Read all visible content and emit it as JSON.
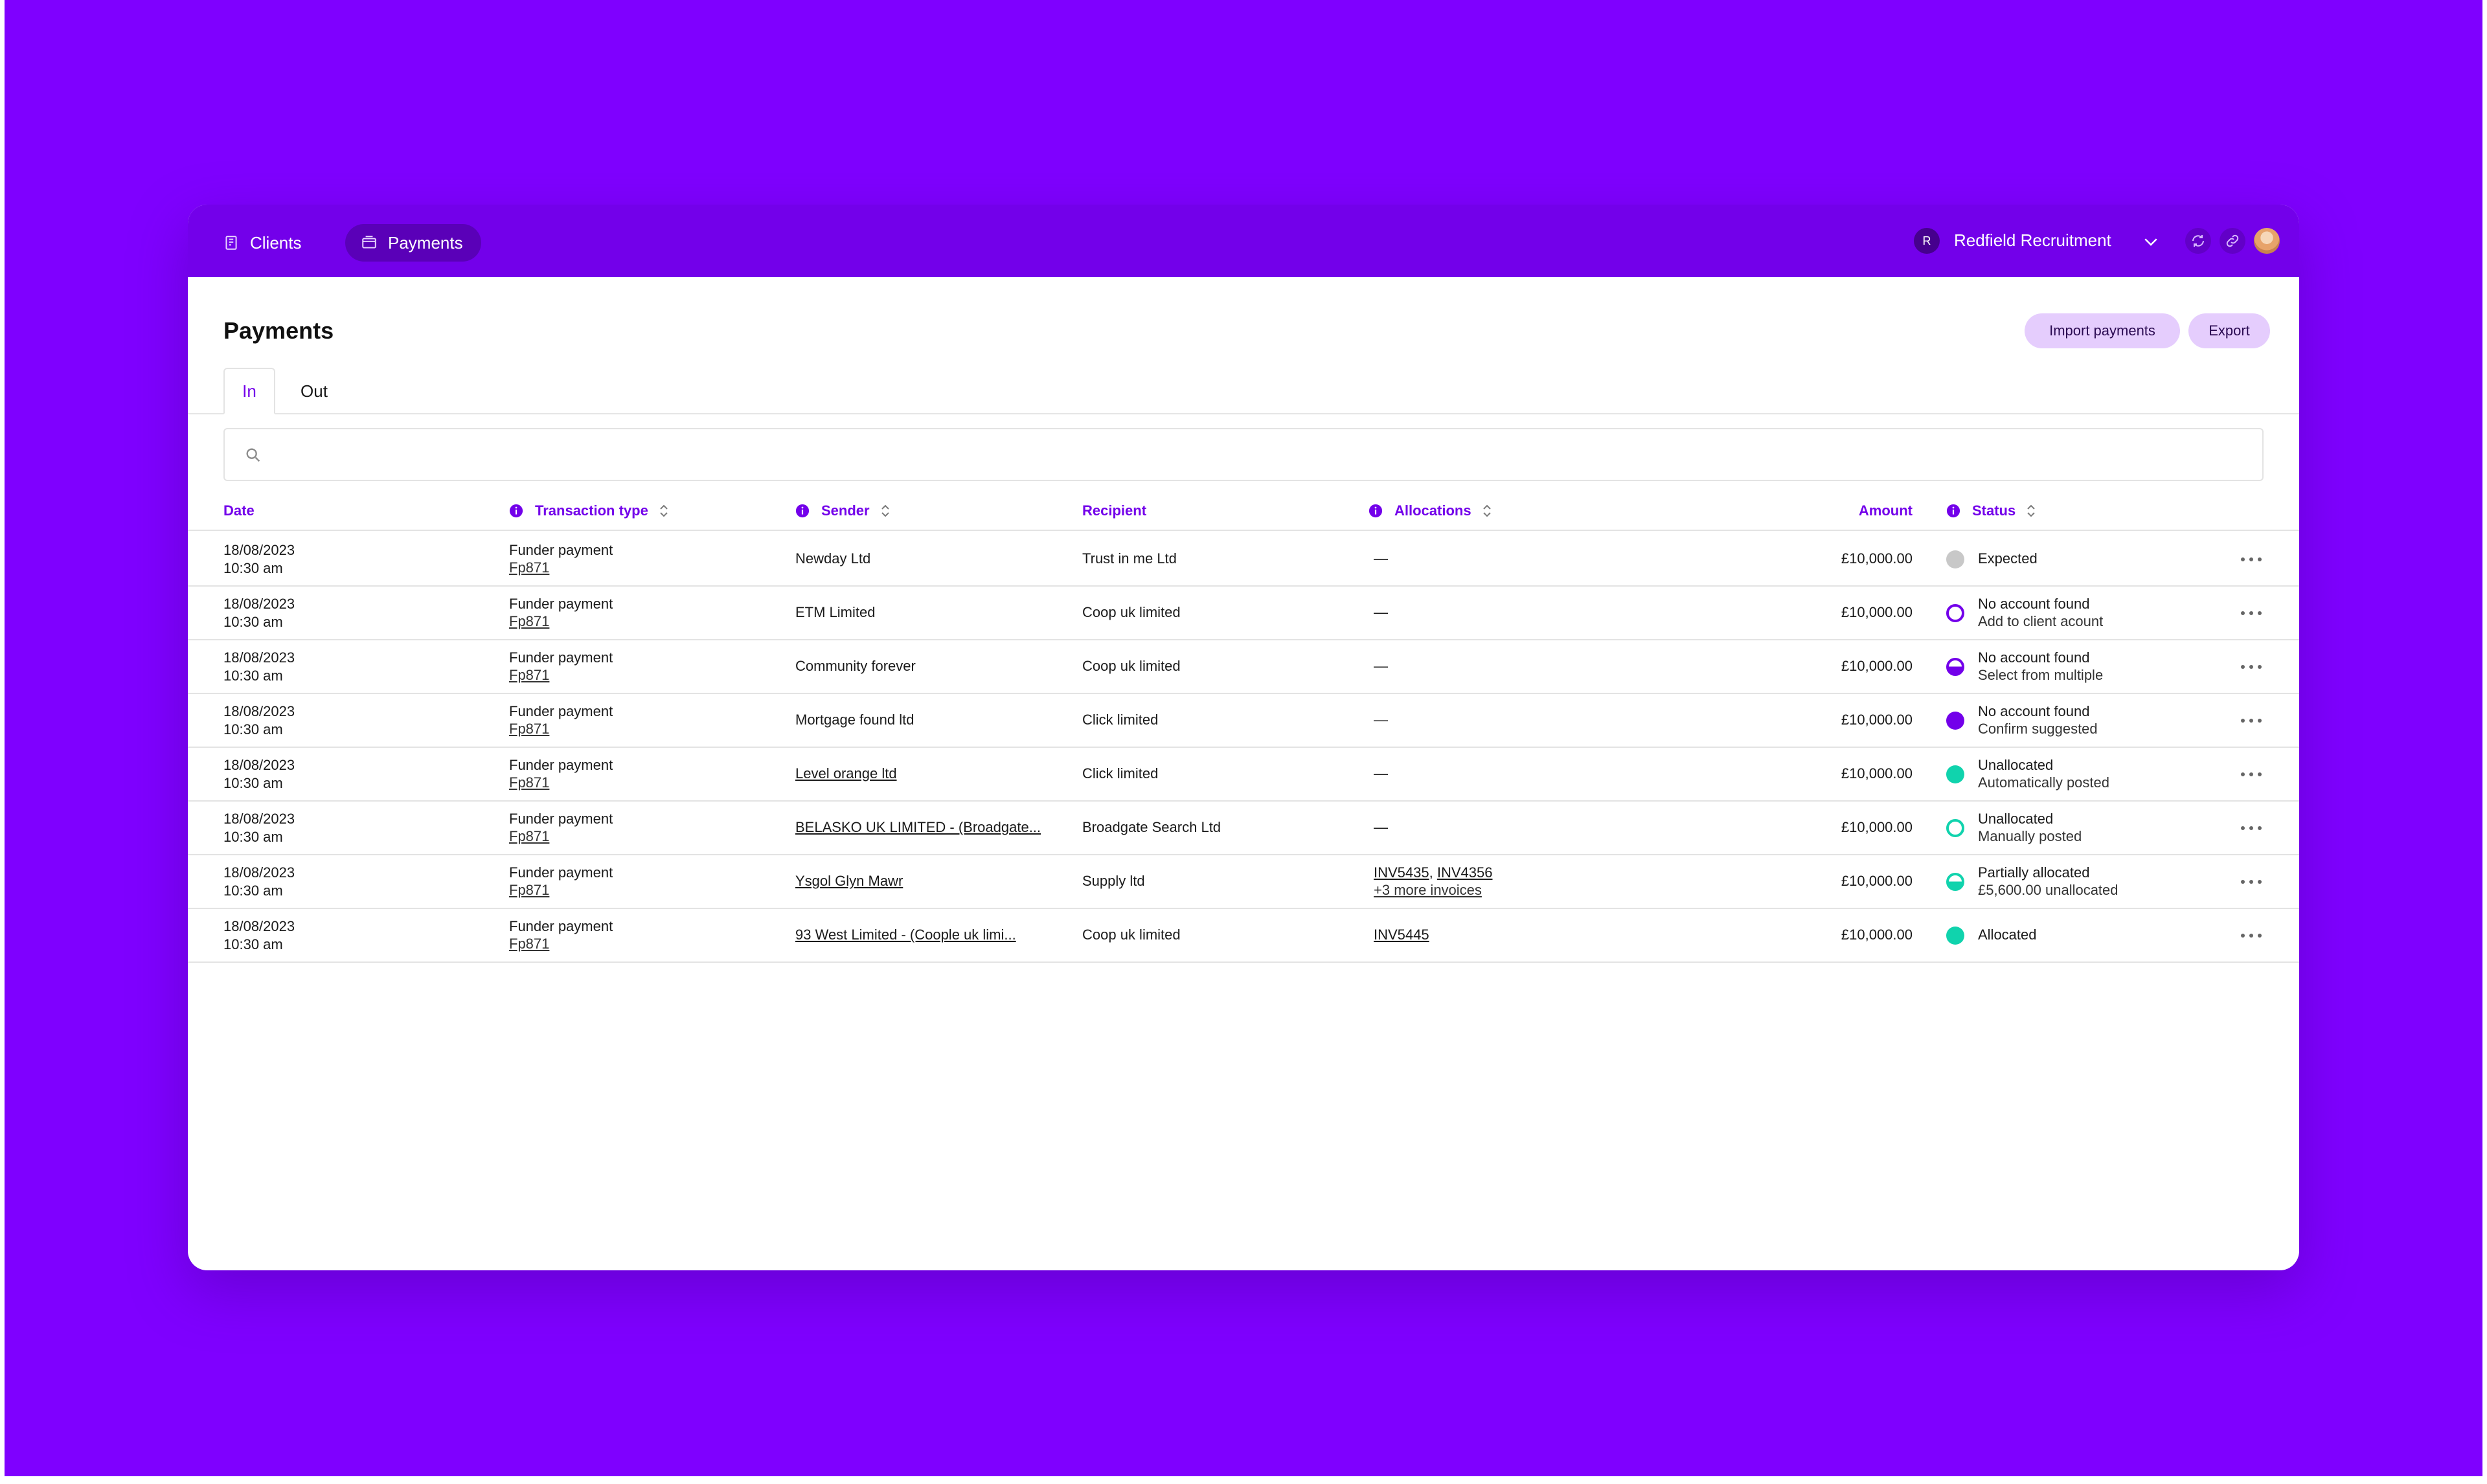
{
  "nav": {
    "clients_label": "Clients",
    "payments_label": "Payments"
  },
  "org": {
    "initial": "R",
    "name": "Redfield Recruitment"
  },
  "page": {
    "title": "Payments",
    "import_label": "Import payments",
    "export_label": "Export"
  },
  "tabs": [
    "In",
    "Out"
  ],
  "search": {
    "placeholder": ""
  },
  "columns": {
    "date": "Date",
    "transaction_type": "Transaction type",
    "sender": "Sender",
    "recipient": "Recipient",
    "allocations": "Allocations",
    "amount": "Amount",
    "status": "Status"
  },
  "rows": [
    {
      "date": "18/08/2023",
      "time": "10:30 am",
      "type": "Funder payment",
      "ref": "Fp871",
      "sender": "Newday Ltd",
      "recipient": "Trust in me Ltd",
      "alloc1": "—",
      "alloc2": "",
      "alloc_more": "",
      "amount": "£10,000.00",
      "status": "Expected",
      "status_sub": "",
      "status_style": "expected"
    },
    {
      "date": "18/08/2023",
      "time": "10:30 am",
      "type": "Funder payment",
      "ref": "Fp871",
      "sender": "ETM Limited",
      "recipient": "Coop uk limited",
      "alloc1": "—",
      "alloc2": "",
      "alloc_more": "",
      "amount": "£10,000.00",
      "status": "No account found",
      "status_sub": "Add to client acount",
      "status_style": "ring-purple"
    },
    {
      "date": "18/08/2023",
      "time": "10:30 am",
      "type": "Funder payment",
      "ref": "Fp871",
      "sender": "Community forever",
      "recipient": "Coop uk limited",
      "alloc1": "—",
      "alloc2": "",
      "alloc_more": "",
      "amount": "£10,000.00",
      "status": "No account found",
      "status_sub": "Select from multiple",
      "status_style": "half-purple"
    },
    {
      "date": "18/08/2023",
      "time": "10:30 am",
      "type": "Funder payment",
      "ref": "Fp871",
      "sender": "Mortgage found ltd",
      "recipient": "Click limited",
      "alloc1": "—",
      "alloc2": "",
      "alloc_more": "",
      "amount": "£10,000.00",
      "status": "No account found",
      "status_sub": "Confirm suggested",
      "status_style": "solid-purple"
    },
    {
      "date": "18/08/2023",
      "time": "10:30 am",
      "type": "Funder payment",
      "ref": "Fp871",
      "sender": "Level orange ltd",
      "sender_link": true,
      "recipient": "Click limited",
      "alloc1": "—",
      "alloc2": "",
      "alloc_more": "",
      "amount": "£10,000.00",
      "status": "Unallocated",
      "status_sub": "Automatically posted",
      "status_style": "solid-teal"
    },
    {
      "date": "18/08/2023",
      "time": "10:30 am",
      "type": "Funder payment",
      "ref": "Fp871",
      "sender": "BELASKO UK LIMITED - (Broadgate...",
      "sender_link": true,
      "recipient": "Broadgate Search Ltd",
      "alloc1": "—",
      "alloc2": "",
      "alloc_more": "",
      "amount": "£10,000.00",
      "status": "Unallocated",
      "status_sub": "Manually posted",
      "status_style": "ring-teal"
    },
    {
      "date": "18/08/2023",
      "time": "10:30 am",
      "type": "Funder payment",
      "ref": "Fp871",
      "sender": "Ysgol Glyn Mawr",
      "sender_link": true,
      "recipient": "Supply ltd",
      "alloc1": "INV5435",
      "alloc2": "INV4356",
      "alloc_more": "+3 more invoices",
      "amount": "£10,000.00",
      "status": "Partially allocated",
      "status_sub": "£5,600.00 unallocated",
      "status_style": "half-teal"
    },
    {
      "date": "18/08/2023",
      "time": "10:30 am",
      "type": "Funder payment",
      "ref": "Fp871",
      "sender": "93 West Limited - (Coople uk limi...",
      "sender_link": true,
      "recipient": "Coop uk limited",
      "alloc1": "INV5445",
      "alloc2": "",
      "alloc_more": "",
      "amount": "£10,000.00",
      "status": "Allocated",
      "status_sub": "",
      "status_style": "solid-teal"
    }
  ],
  "icons": [
    "clients-icon",
    "payments-icon",
    "chevron-down-icon",
    "refresh-icon",
    "link-icon",
    "search-icon",
    "info-icon",
    "sort-icon",
    "more-icon"
  ],
  "colors": {
    "brand": "#7f00ff",
    "topbar": "#7300ea",
    "accent_purple": "#7300ea",
    "teal": "#10d3ad",
    "expected_grey": "#c8c8c8",
    "button_bg": "#e5cdfd"
  }
}
